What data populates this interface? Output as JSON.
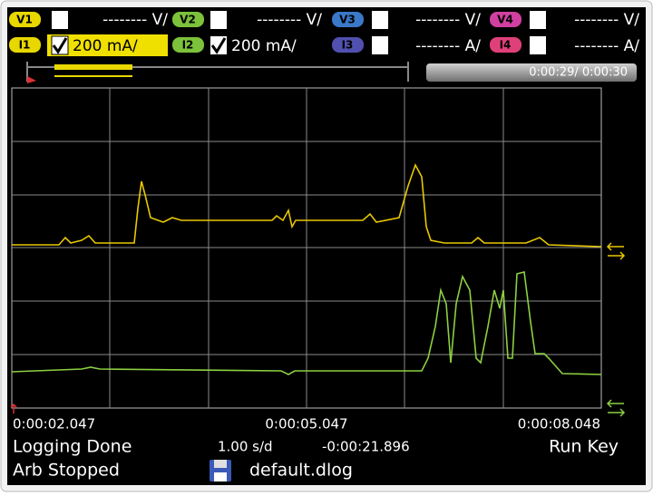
{
  "channels": [
    {
      "label": "V1",
      "scale": "-------- V/"
    },
    {
      "label": "V2",
      "scale": "-------- V/"
    },
    {
      "label": "V3",
      "scale": "-------- V/"
    },
    {
      "label": "V4",
      "scale": "-------- V/"
    },
    {
      "label": "I1",
      "scale": "200 mA/"
    },
    {
      "label": "I2",
      "scale": "200 mA/"
    },
    {
      "label": "I3",
      "scale": "-------- A/"
    },
    {
      "label": "I4",
      "scale": "-------- A/"
    }
  ],
  "time_window": "0:00:29/ 0:00:30",
  "time_axis": [
    "0:00:02.047",
    "0:00:05.047",
    "0:00:08.048"
  ],
  "status": {
    "logging": "Logging Done",
    "time_per_div": "1.00 s/d",
    "offset": "-0:00:21.896",
    "trigger": "Run Key",
    "arb": "Arb Stopped",
    "file": "default.dlog"
  }
}
